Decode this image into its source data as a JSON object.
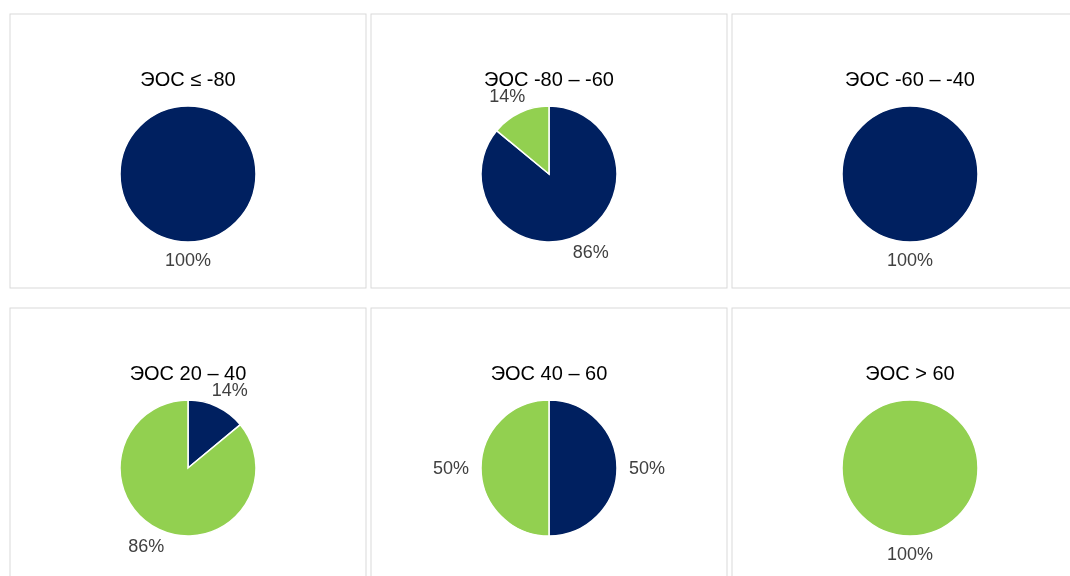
{
  "chart_data": [
    {
      "type": "pie",
      "title": "ЭОС ≤ -80",
      "categories": [
        null
      ],
      "values": [
        100
      ],
      "colors": [
        "#002060"
      ],
      "value_labels": [
        "100%"
      ]
    },
    {
      "type": "pie",
      "title": "ЭОС -80 – -60",
      "categories": [
        null,
        null
      ],
      "values": [
        86,
        14
      ],
      "colors": [
        "#002060",
        "#92d050"
      ],
      "value_labels": [
        "86%",
        "14%"
      ]
    },
    {
      "type": "pie",
      "title": "ЭОС -60 – -40",
      "categories": [
        null
      ],
      "values": [
        100
      ],
      "colors": [
        "#002060"
      ],
      "value_labels": [
        "100%"
      ]
    },
    {
      "type": "pie",
      "title": "ЭОС 20 – 40",
      "categories": [
        null,
        null
      ],
      "values": [
        14,
        86
      ],
      "colors": [
        "#002060",
        "#92d050"
      ],
      "value_labels": [
        "14%",
        "86%"
      ]
    },
    {
      "type": "pie",
      "title": "ЭОС 40 – 60",
      "categories": [
        null,
        null
      ],
      "values": [
        50,
        50
      ],
      "colors": [
        "#002060",
        "#92d050"
      ],
      "value_labels": [
        "50%",
        "50%"
      ]
    },
    {
      "type": "pie",
      "title": "ЭОС > 60",
      "categories": [
        null
      ],
      "values": [
        100
      ],
      "colors": [
        "#92d050"
      ],
      "value_labels": [
        "100%"
      ]
    }
  ]
}
